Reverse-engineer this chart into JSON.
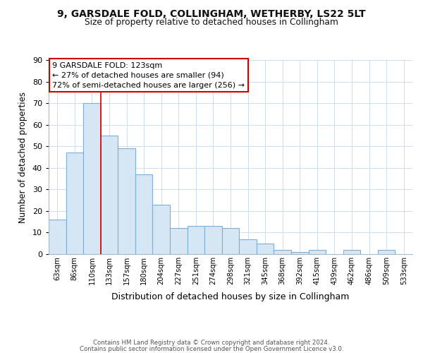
{
  "title1": "9, GARSDALE FOLD, COLLINGHAM, WETHERBY, LS22 5LT",
  "title2": "Size of property relative to detached houses in Collingham",
  "xlabel": "Distribution of detached houses by size in Collingham",
  "ylabel": "Number of detached properties",
  "categories": [
    "63sqm",
    "86sqm",
    "110sqm",
    "133sqm",
    "157sqm",
    "180sqm",
    "204sqm",
    "227sqm",
    "251sqm",
    "274sqm",
    "298sqm",
    "321sqm",
    "345sqm",
    "368sqm",
    "392sqm",
    "415sqm",
    "439sqm",
    "462sqm",
    "486sqm",
    "509sqm",
    "533sqm"
  ],
  "values": [
    16,
    47,
    70,
    55,
    49,
    37,
    23,
    12,
    13,
    13,
    12,
    7,
    5,
    2,
    1,
    2,
    0,
    2,
    0,
    2,
    0
  ],
  "bar_color": "#d6e6f5",
  "bar_edge_color": "#7bafd4",
  "vline_x_index": 2.5,
  "vline_color": "#cc0000",
  "annotation_text": "9 GARSDALE FOLD: 123sqm\n← 27% of detached houses are smaller (94)\n72% of semi-detached houses are larger (256) →",
  "annotation_box_color": "#ffffff",
  "annotation_box_edge": "#cc0000",
  "ylim": [
    0,
    90
  ],
  "yticks": [
    0,
    10,
    20,
    30,
    40,
    50,
    60,
    70,
    80,
    90
  ],
  "footer1": "Contains HM Land Registry data © Crown copyright and database right 2024.",
  "footer2": "Contains public sector information licensed under the Open Government Licence v3.0.",
  "bg_color": "#ffffff",
  "plot_bg_color": "#ffffff",
  "grid_color": "#d0dce8"
}
